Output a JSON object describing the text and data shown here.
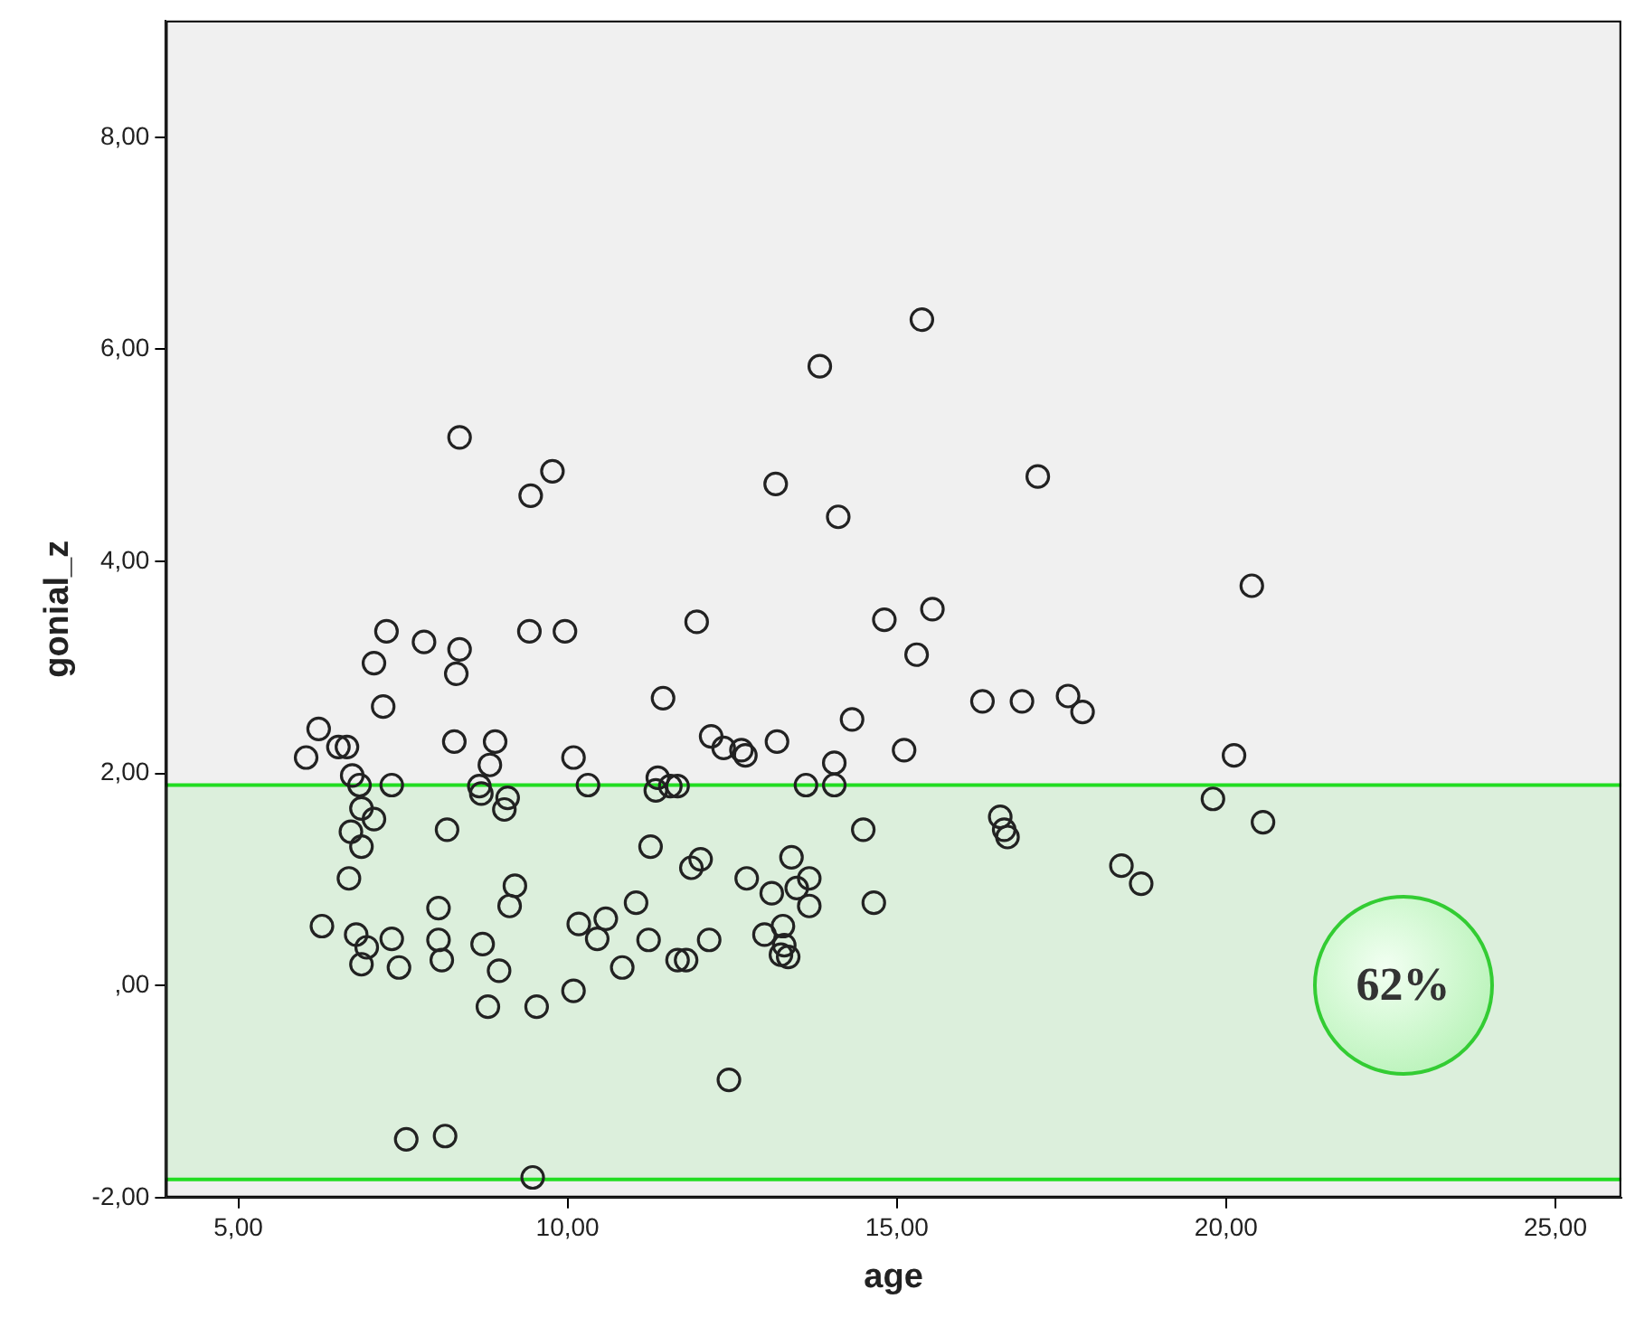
{
  "chart_data": {
    "type": "scatter",
    "xlabel": "age",
    "ylabel": "gonial_z",
    "marker": "circle",
    "grid": false,
    "legend": false,
    "xlim": [
      3.9,
      26
    ],
    "ylim": [
      -2,
      9.1
    ],
    "xticks": [
      {
        "value": 5,
        "label": "5,00"
      },
      {
        "value": 10,
        "label": "10,00"
      },
      {
        "value": 15,
        "label": "15,00"
      },
      {
        "value": 20,
        "label": "20,00"
      },
      {
        "value": 25,
        "label": "25,00"
      }
    ],
    "yticks": [
      {
        "value": -2,
        "label": "-2,00"
      },
      {
        "value": 0,
        "label": ",00"
      },
      {
        "value": 2,
        "label": "2,00"
      },
      {
        "value": 4,
        "label": "4,00"
      },
      {
        "value": 6,
        "label": "6,00"
      },
      {
        "value": 8,
        "label": "8,00"
      }
    ],
    "bands": [
      {
        "axis": "y",
        "from": -1.83,
        "to": 1.89,
        "color": "#dcefdc"
      }
    ],
    "ref_lines": [
      {
        "axis": "y",
        "value": -1.83,
        "color": "#22dd22"
      },
      {
        "axis": "y",
        "value": 1.89,
        "color": "#22dd22"
      }
    ],
    "annotations": [
      "62%"
    ],
    "series": [
      {
        "color": "#222222",
        "x": [
          6.03,
          6.22,
          6.52,
          6.65,
          6.27,
          6.68,
          6.71,
          6.73,
          6.84,
          6.87,
          6.87,
          6.79,
          6.87,
          6.95,
          7.06,
          7.06,
          7.2,
          7.25,
          7.33,
          7.33,
          7.44,
          7.55,
          7.82,
          8.04,
          8.04,
          8.09,
          8.14,
          8.17,
          8.28,
          8.31,
          8.36,
          8.36,
          8.66,
          8.69,
          8.71,
          8.79,
          8.82,
          8.9,
          8.96,
          9.04,
          9.09,
          9.12,
          9.2,
          9.42,
          9.44,
          9.47,
          9.53,
          9.77,
          9.96,
          10.09,
          10.17,
          10.09,
          10.31,
          10.45,
          10.58,
          10.83,
          11.04,
          11.23,
          11.26,
          11.34,
          11.37,
          11.45,
          11.56,
          11.67,
          11.67,
          11.8,
          11.88,
          11.96,
          12.02,
          12.15,
          12.18,
          12.37,
          12.45,
          12.64,
          12.7,
          12.72,
          12.99,
          13.1,
          13.16,
          13.18,
          13.24,
          13.27,
          13.29,
          13.35,
          13.4,
          13.48,
          13.62,
          13.67,
          13.67,
          13.83,
          14.05,
          14.05,
          14.11,
          14.32,
          14.49,
          14.65,
          14.81,
          15.11,
          15.3,
          15.38,
          15.54,
          16.3,
          16.57,
          16.63,
          16.68,
          16.9,
          17.14,
          17.6,
          17.82,
          18.41,
          18.71,
          19.8,
          20.12,
          20.39,
          20.56
        ],
        "values": [
          2.15,
          2.42,
          2.25,
          2.25,
          0.56,
          1.01,
          1.45,
          1.98,
          1.89,
          1.67,
          1.31,
          0.48,
          0.2,
          0.36,
          1.57,
          3.04,
          2.63,
          3.34,
          1.89,
          0.44,
          0.17,
          -1.45,
          3.24,
          0.43,
          0.73,
          0.24,
          -1.42,
          1.47,
          2.3,
          2.94,
          3.17,
          5.17,
          1.88,
          1.81,
          0.39,
          -0.2,
          2.08,
          2.3,
          0.14,
          1.66,
          1.77,
          0.75,
          0.94,
          3.34,
          4.62,
          -1.81,
          -0.2,
          4.85,
          3.34,
          2.15,
          0.58,
          -0.05,
          1.89,
          0.44,
          0.63,
          0.17,
          0.78,
          0.43,
          1.31,
          1.84,
          1.96,
          2.71,
          1.88,
          1.88,
          0.24,
          0.24,
          1.11,
          3.43,
          1.19,
          0.43,
          2.35,
          2.24,
          -0.89,
          2.22,
          2.17,
          1.01,
          0.48,
          0.87,
          4.73,
          2.3,
          0.29,
          0.56,
          0.38,
          0.27,
          1.21,
          0.92,
          1.89,
          0.75,
          1.01,
          5.84,
          2.1,
          1.89,
          4.42,
          2.51,
          1.47,
          0.78,
          3.45,
          2.22,
          3.12,
          6.28,
          3.55,
          2.68,
          1.59,
          1.47,
          1.4,
          2.68,
          4.8,
          2.73,
          2.58,
          1.13,
          0.96,
          1.76,
          2.17,
          3.77,
          1.54
        ]
      }
    ]
  }
}
